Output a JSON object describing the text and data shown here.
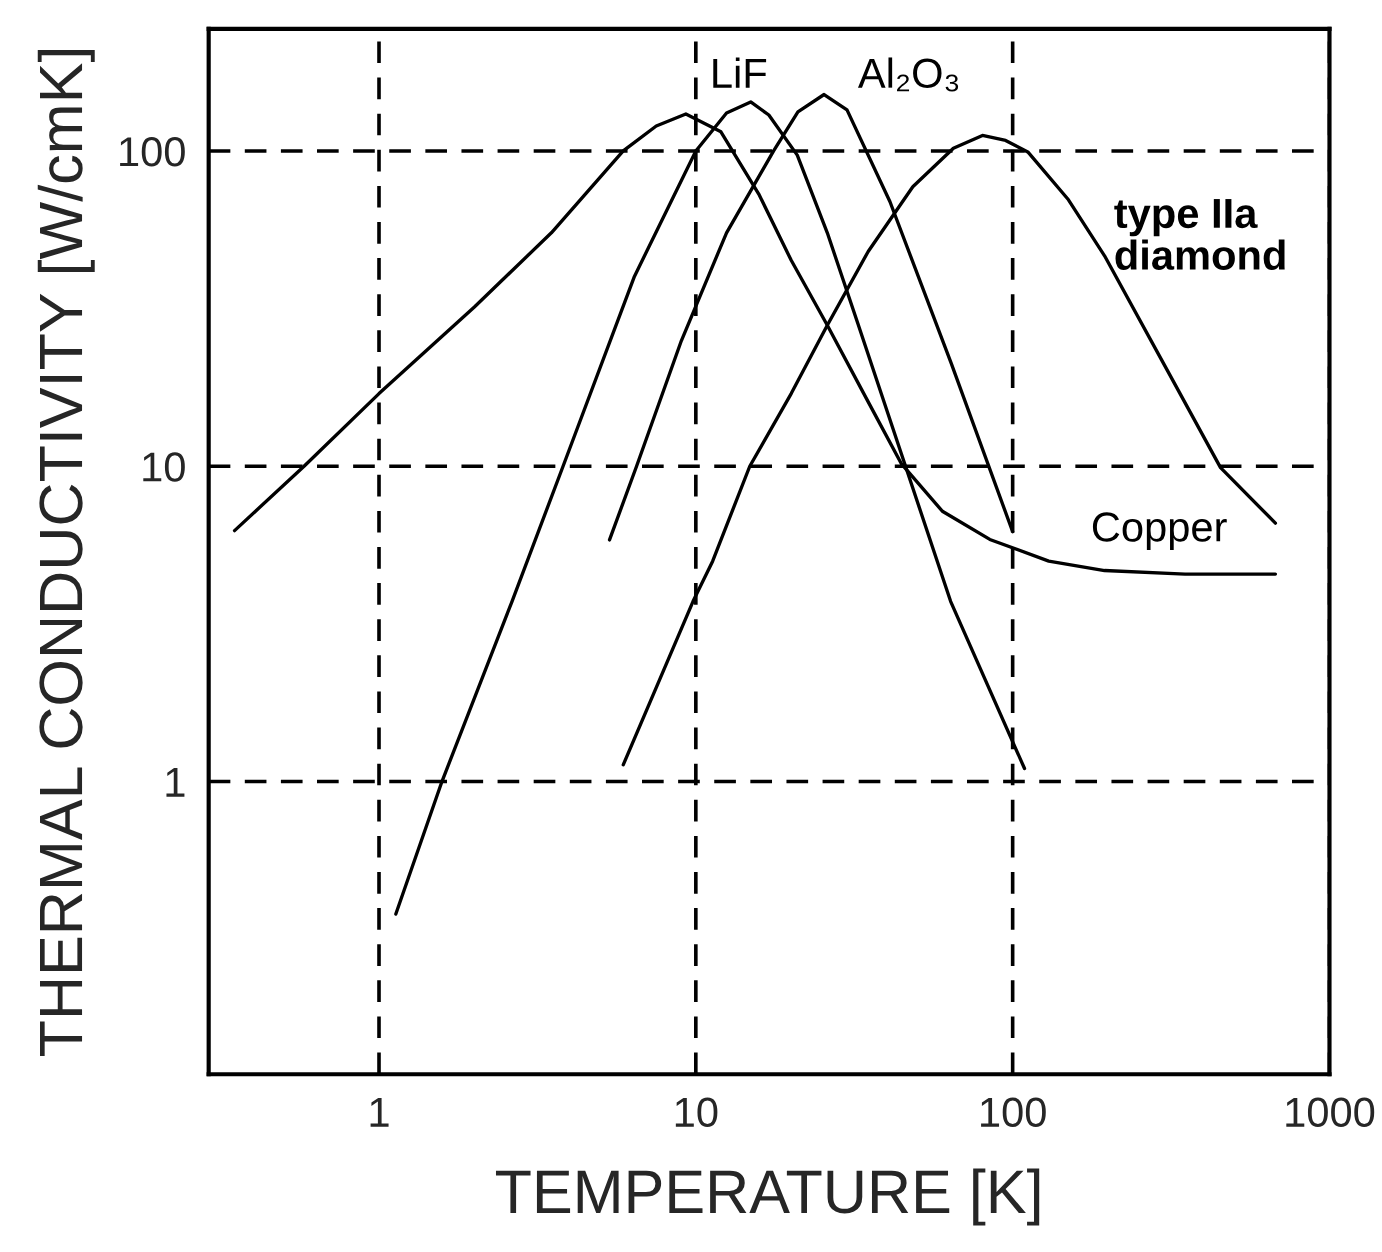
{
  "chart_data": {
    "type": "line",
    "xlabel": "TEMPERATURE [K]",
    "ylabel": "THERMAL CONDUCTIVITY [W/cmK]",
    "log": "xy",
    "xlim": [
      0.29,
      1000
    ],
    "ylim": [
      0.118,
      244
    ],
    "xticks": [
      1,
      10,
      100,
      1000
    ],
    "yticks": [
      1,
      10,
      100
    ],
    "grid": true,
    "legend": false,
    "marker": "none",
    "line_style": "solid",
    "series": [
      {
        "name": "Copper",
        "color": "#000000",
        "x": [
          0.35,
          0.58,
          1,
          2,
          3.5,
          5.9,
          7.5,
          9.3,
          12,
          15.8,
          20,
          26,
          35,
          44.5,
          60,
          84.7,
          130,
          195,
          350,
          675
        ],
        "values": [
          6.25,
          10,
          17,
          32,
          55,
          100,
          120,
          131,
          115,
          73,
          45,
          28,
          16,
          10.2,
          7.2,
          5.86,
          5.0,
          4.67,
          4.55,
          4.55
        ]
      },
      {
        "name": "LiF",
        "color": "#000000",
        "x": [
          1.13,
          1.58,
          2.63,
          3.81,
          6.4,
          10,
          12.5,
          14.9,
          17,
          20.9,
          26,
          32.6,
          45.6,
          63.7,
          109
        ],
        "values": [
          0.38,
          1,
          3.73,
          10,
          40,
          100,
          132,
          143,
          130,
          97,
          55,
          28,
          10.2,
          3.73,
          1.1
        ]
      },
      {
        "name": "Al₂O₃",
        "color": "#000000",
        "x": [
          5.34,
          6.5,
          9,
          12.5,
          17.6,
          21,
          25.4,
          30,
          41,
          64,
          100
        ],
        "values": [
          5.84,
          10,
          25,
          55,
          100,
          133,
          151,
          135,
          69,
          21.2,
          6.2
        ]
      },
      {
        "name": "type IIa\ndiamond",
        "color": "#000000",
        "x": [
          5.9,
          9.8,
          11.3,
          14.8,
          20,
          26,
          35,
          48.4,
          65,
          80.3,
          95,
          112,
          150,
          195,
          309,
          453,
          675
        ],
        "values": [
          1.13,
          3.73,
          5.0,
          10,
          17,
          28,
          48,
          77,
          102,
          112,
          108,
          99,
          70,
          46.5,
          20,
          9.9,
          6.6
        ]
      }
    ]
  }
}
